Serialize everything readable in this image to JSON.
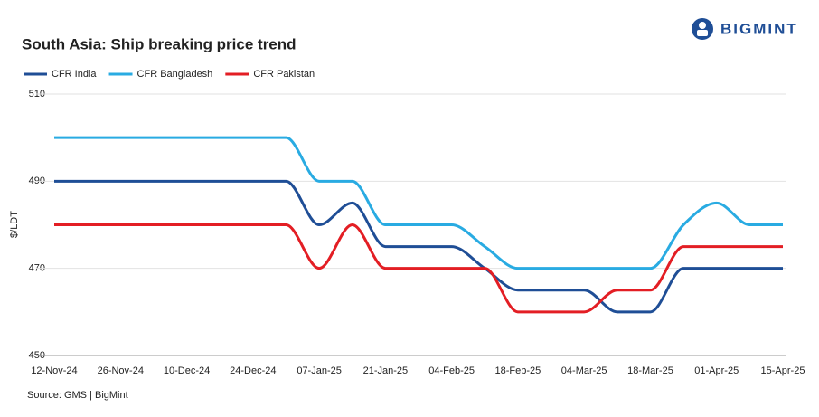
{
  "logo": "BIGMINT",
  "chart_data": {
    "type": "line",
    "title": "South Asia: Ship breaking  price trend",
    "y_label": "$/LDT",
    "source": "Source: GMS | BigMint",
    "categories": [
      "12-Nov-24",
      null,
      "26-Nov-24",
      null,
      "10-Dec-24",
      null,
      "24-Dec-24",
      null,
      "07-Jan-25",
      null,
      "21-Jan-25",
      null,
      "04-Feb-25",
      null,
      "18-Feb-25",
      null,
      "04-Mar-25",
      null,
      "18-Mar-25",
      null,
      "01-Apr-25",
      null,
      "15-Apr-25"
    ],
    "series": [
      {
        "name": "CFR India",
        "color": "#1f4e96",
        "values": [
          490,
          490,
          490,
          490,
          490,
          490,
          490,
          490,
          480,
          485,
          475,
          475,
          475,
          470,
          465,
          465,
          465,
          460,
          460,
          470,
          470,
          470,
          470
        ]
      },
      {
        "name": "CFR Bangladesh",
        "color": "#29abe2",
        "values": [
          500,
          500,
          500,
          500,
          500,
          500,
          500,
          500,
          490,
          490,
          480,
          480,
          480,
          475,
          470,
          470,
          470,
          470,
          470,
          480,
          485,
          480,
          480
        ]
      },
      {
        "name": "CFR Pakistan",
        "color": "#e31e24",
        "values": [
          480,
          480,
          480,
          480,
          480,
          480,
          480,
          480,
          470,
          480,
          470,
          470,
          470,
          470,
          460,
          460,
          460,
          465,
          465,
          475,
          475,
          475,
          475
        ]
      }
    ],
    "ylim": [
      450,
      510
    ],
    "yticks": [
      450,
      470,
      490,
      510
    ],
    "grid": true
  }
}
